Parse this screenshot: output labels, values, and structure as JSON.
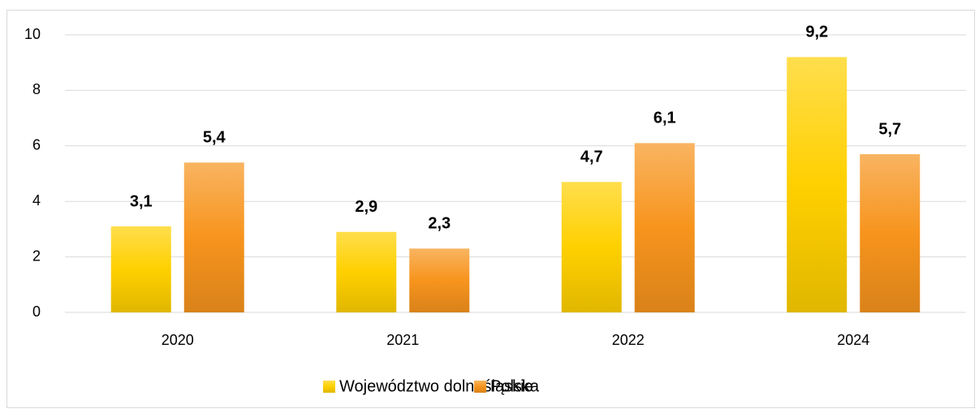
{
  "chart_data": {
    "type": "bar",
    "categories": [
      "2020",
      "2021",
      "2022",
      "2024"
    ],
    "series": [
      {
        "name": "Województwo dolnośląskie",
        "color": "#ffd000",
        "values": [
          3.1,
          2.9,
          4.7,
          9.2
        ],
        "value_labels": [
          "3,1",
          "2,9",
          "4,7",
          "9,2"
        ]
      },
      {
        "name": "Polska",
        "color": "#f7941d",
        "values": [
          5.4,
          2.3,
          6.1,
          5.7
        ],
        "value_labels": [
          "5,4",
          "2,3",
          "6,1",
          "5,7"
        ]
      }
    ],
    "ylim": [
      0,
      10
    ],
    "yticks": [
      0,
      2,
      4,
      6,
      8,
      10
    ],
    "grid": true,
    "legend": "bottom"
  }
}
